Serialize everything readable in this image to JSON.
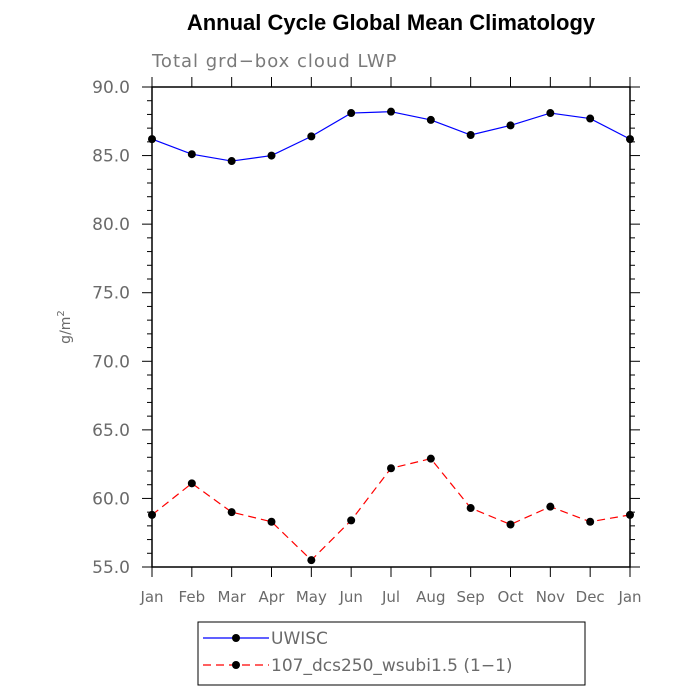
{
  "chart_data": {
    "type": "line",
    "title": "Annual Cycle Global Mean Climatology",
    "subtitle": "Total grd−box cloud LWP",
    "ylabel": "g/m",
    "ylabel_sup": "2",
    "xlabel": "",
    "categories": [
      "Jan",
      "Feb",
      "Mar",
      "Apr",
      "May",
      "Jun",
      "Jul",
      "Aug",
      "Sep",
      "Oct",
      "Nov",
      "Dec",
      "Jan"
    ],
    "yticks": [
      "55.0",
      "60.0",
      "65.0",
      "70.0",
      "75.0",
      "80.0",
      "85.0",
      "90.0"
    ],
    "ylim": [
      55,
      90
    ],
    "series": [
      {
        "name": "UWISC",
        "color": "#0000ff",
        "dash": "solid",
        "values": [
          86.2,
          85.1,
          84.6,
          85.0,
          86.4,
          88.1,
          88.2,
          87.6,
          86.5,
          87.2,
          88.1,
          87.7,
          86.2
        ]
      },
      {
        "name": "107_dcs250_wsubi1.5 (1−1)",
        "color": "#ff0000",
        "dash": "dashed",
        "values": [
          58.8,
          61.1,
          59.0,
          58.3,
          55.5,
          58.4,
          62.2,
          62.9,
          59.3,
          58.1,
          59.4,
          58.3,
          58.8
        ]
      }
    ],
    "marker_color": "#000000",
    "grid": false,
    "legend_position": "bottom-center"
  }
}
